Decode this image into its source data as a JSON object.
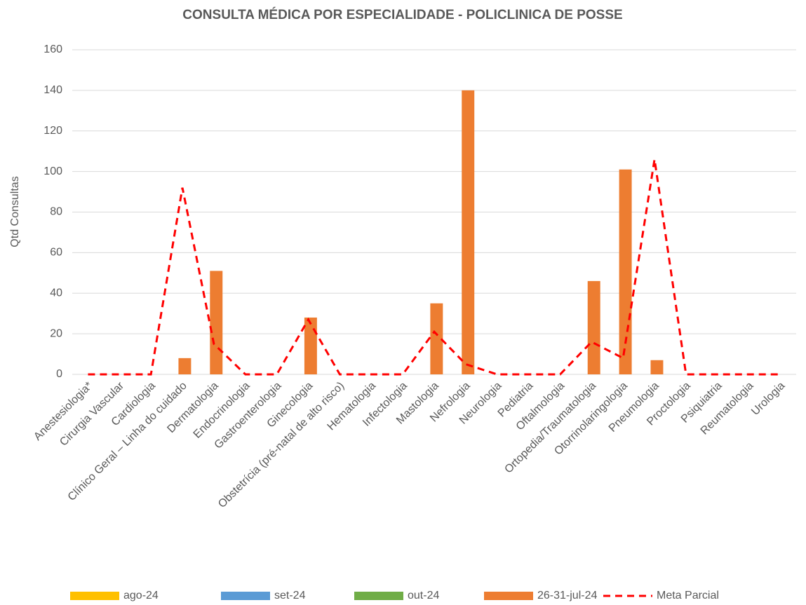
{
  "chart_data": {
    "type": "bar",
    "title": "CONSULTA MÉDICA POR ESPECIALIDADE - POLICLINICA DE POSSE",
    "y_label": "Qtd Consultas",
    "categories": [
      "Anestesiologia*",
      "Cirurgia Vascular",
      "Cardiologia",
      "Clínico Geral – Linha do cuidado",
      "Dermatologia",
      "Endocrinologia",
      "Gastroenterologia",
      "Ginecologia",
      "Obstetrícia (pré-natal de alto risco)",
      "Hematologia",
      "Infectologia",
      "Mastologia",
      "Nefrologia",
      "Neurologia",
      "Pediatria",
      "Oftalmologia",
      "Ortopedia/Traumatologia",
      "Otorrinolaringologia",
      "Pneumologia",
      "Proctologia",
      "Psiquiatria",
      "Reumatologia",
      "Urologia"
    ],
    "series": [
      {
        "name": "ago-24",
        "type": "bar",
        "color": "#ffc000",
        "values": [
          null,
          null,
          null,
          null,
          null,
          null,
          null,
          null,
          null,
          null,
          null,
          null,
          null,
          null,
          null,
          null,
          null,
          null,
          null,
          null,
          null,
          null,
          null
        ]
      },
      {
        "name": "set-24",
        "type": "bar",
        "color": "#5b9bd5",
        "values": [
          null,
          null,
          null,
          null,
          null,
          null,
          null,
          null,
          null,
          null,
          null,
          null,
          null,
          null,
          null,
          null,
          null,
          null,
          null,
          null,
          null,
          null,
          null
        ]
      },
      {
        "name": "out-24",
        "type": "bar",
        "color": "#70ad47",
        "values": [
          null,
          null,
          null,
          null,
          null,
          null,
          null,
          null,
          null,
          null,
          null,
          null,
          null,
          null,
          null,
          null,
          null,
          null,
          null,
          null,
          null,
          null,
          null
        ]
      },
      {
        "name": "26-31-jul-24",
        "type": "bar",
        "color": "#ed7d31",
        "values": [
          null,
          null,
          null,
          8,
          51,
          null,
          null,
          28,
          null,
          null,
          null,
          35,
          140,
          null,
          null,
          null,
          46,
          101,
          7,
          null,
          null,
          null,
          null
        ]
      },
      {
        "name": "Meta Parcial",
        "type": "line",
        "style": "dashed",
        "color": "#ff0000",
        "values": [
          0,
          0,
          0,
          92,
          15,
          0,
          0,
          27,
          0,
          0,
          0,
          21,
          5,
          0,
          0,
          0,
          16,
          8,
          106,
          0,
          0,
          0,
          0
        ]
      }
    ],
    "ylim": [
      0,
      160
    ],
    "yticks": [
      0,
      20,
      40,
      60,
      80,
      100,
      120,
      140,
      160
    ],
    "grid": true,
    "legend": "bottom"
  }
}
